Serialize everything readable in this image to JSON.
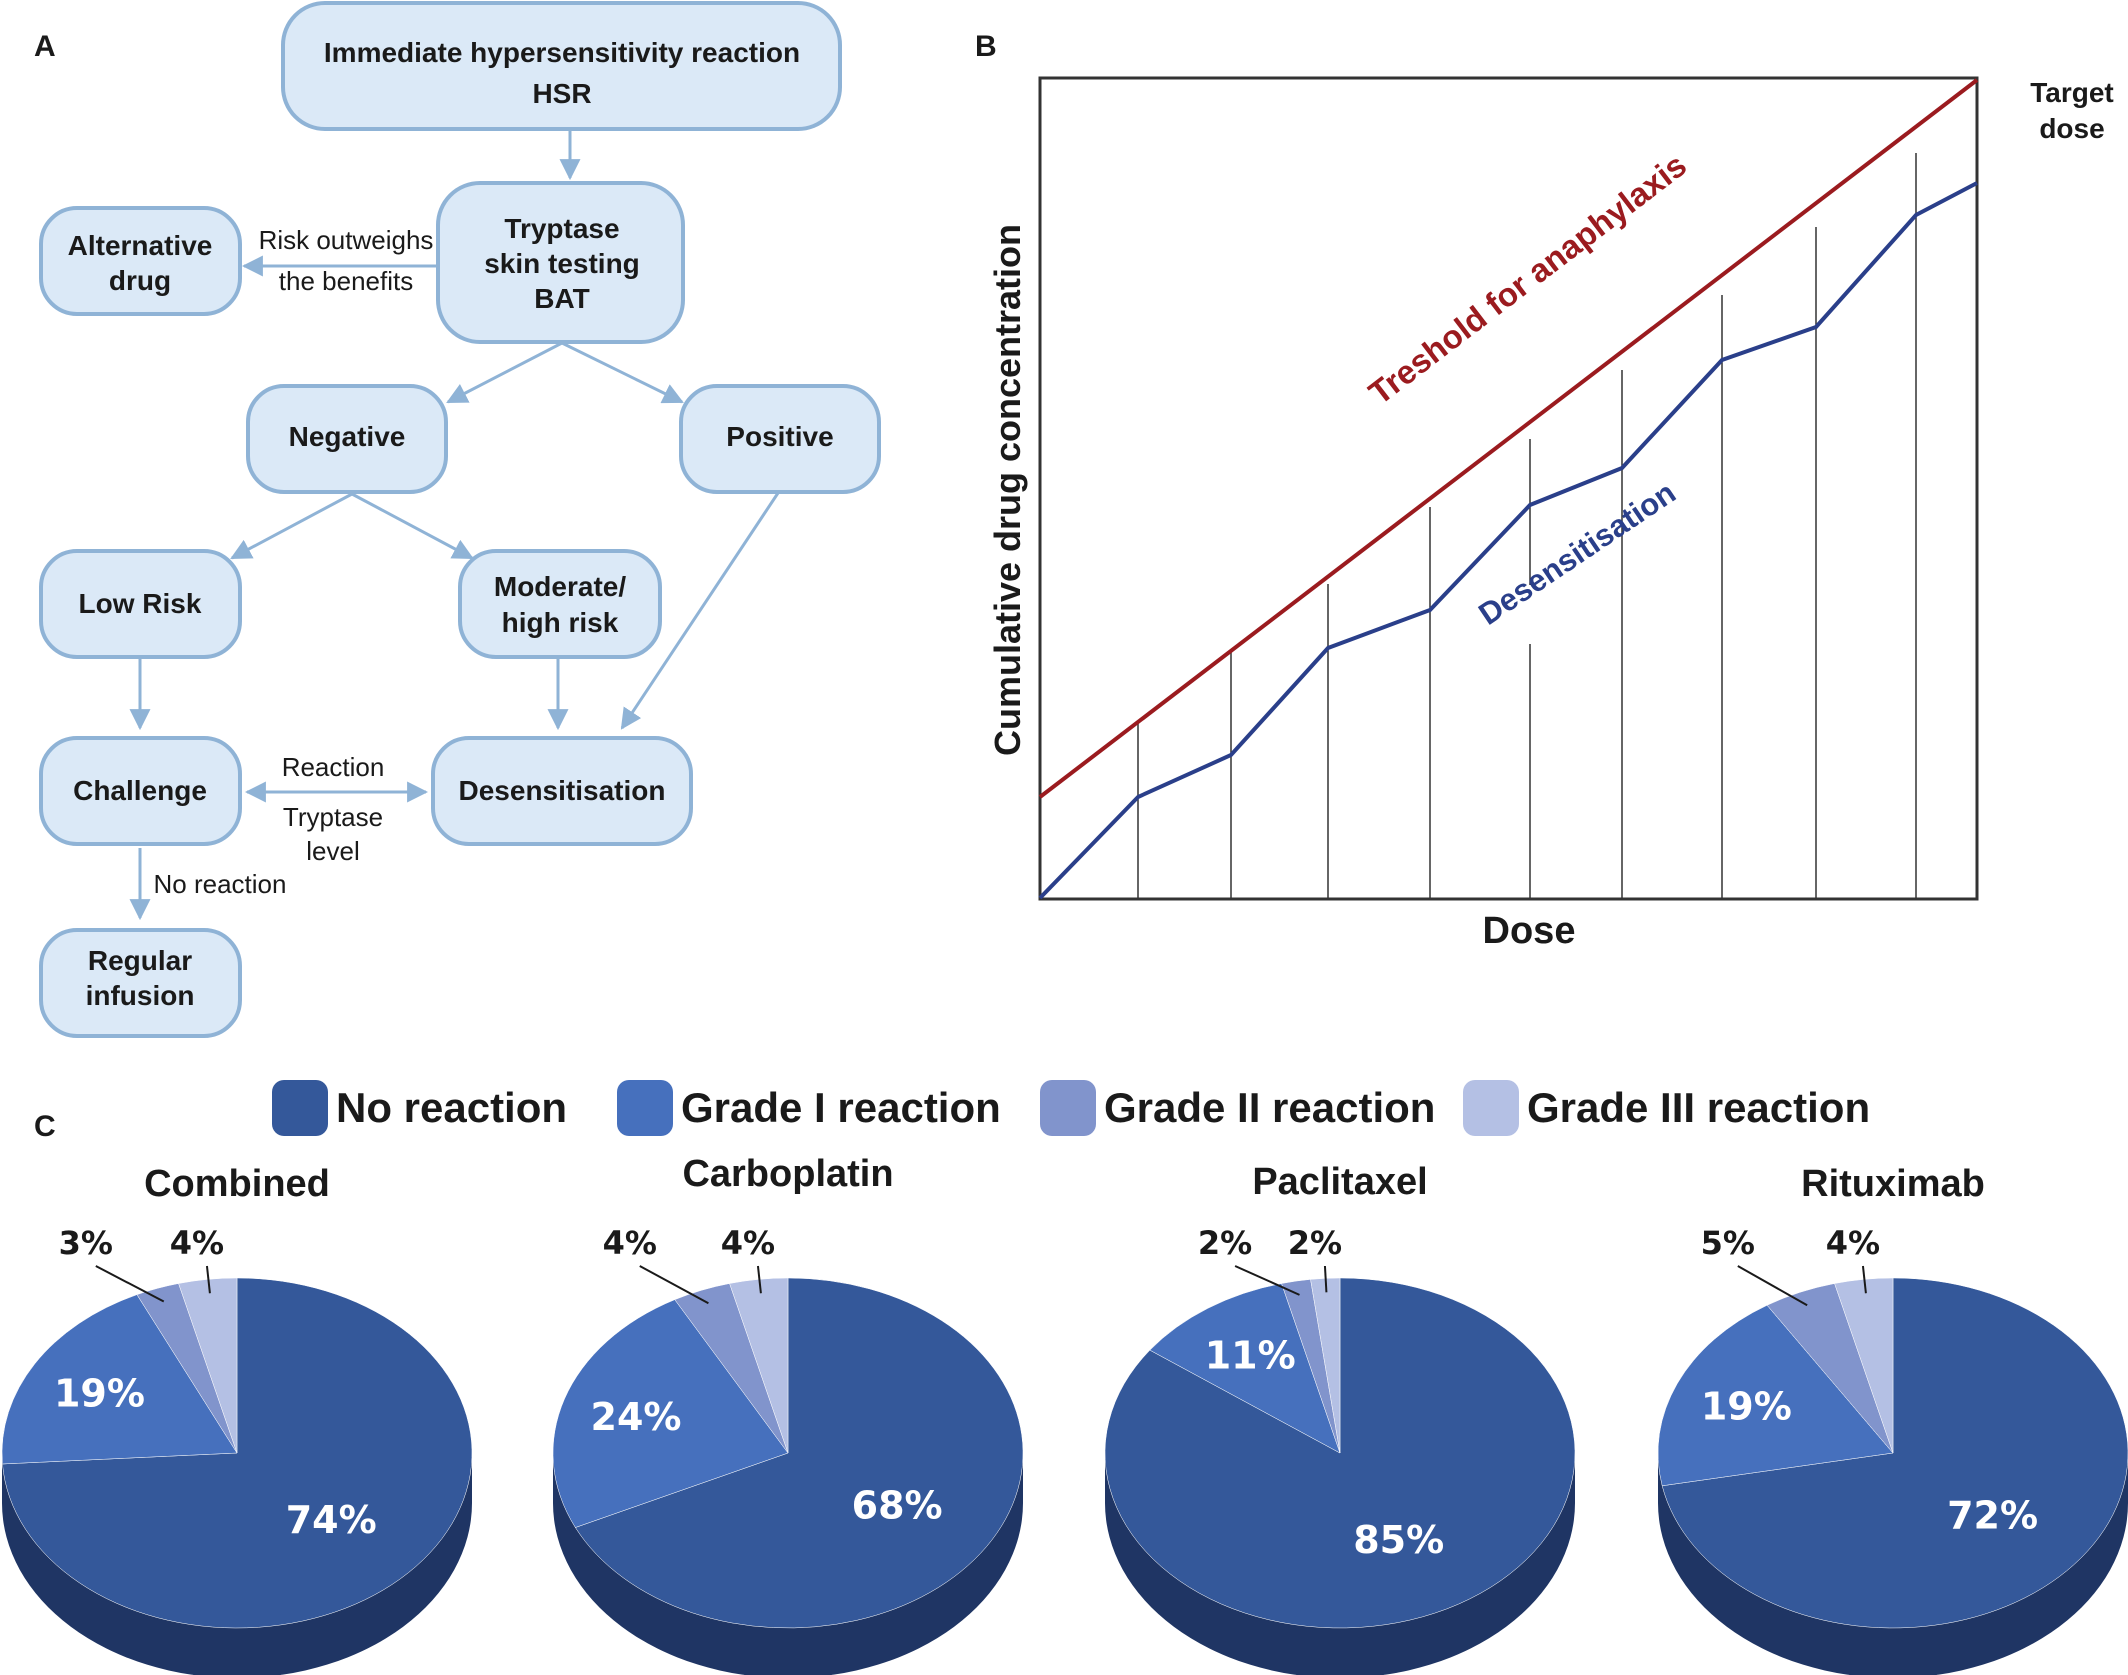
{
  "panel_a": {
    "letter": "A",
    "nodes": {
      "hsr": [
        "Immediate hypersensitivity reaction",
        "HSR"
      ],
      "testing": [
        "Tryptase",
        "skin testing",
        "BAT"
      ],
      "alternative": [
        "Alternative",
        "drug"
      ],
      "negative": [
        "Negative"
      ],
      "positive": [
        "Positive"
      ],
      "low_risk": [
        "Low Risk"
      ],
      "moderate": [
        "Moderate/",
        "high risk"
      ],
      "challenge": [
        "Challenge"
      ],
      "desensitisation": [
        "Desensitisation"
      ],
      "regular": [
        "Regular",
        "infusion"
      ]
    },
    "edge_labels": {
      "risk": [
        "Risk outweighs",
        "the benefits"
      ],
      "reaction": "Reaction",
      "tryptase_level": [
        "Tryptase",
        "level"
      ],
      "no_reaction": "No reaction"
    }
  },
  "panel_b": {
    "letter": "B",
    "ylabel": "Cumulative drug concentration",
    "xlabel": "Dose",
    "threshold_label": "Treshold for anaphylaxis",
    "desensitisation_label": "Desensitisation",
    "target_label": [
      "Target",
      "dose"
    ],
    "colors": {
      "threshold": "#9b1b1f",
      "desensitisation": "#2a3f8a"
    }
  },
  "panel_c": {
    "letter": "C",
    "legend": [
      {
        "label": "No reaction",
        "color": "#34589a"
      },
      {
        "label": "Grade I reaction",
        "color": "#4670bd"
      },
      {
        "label": "Grade II reaction",
        "color": "#8194cc"
      },
      {
        "label": "Grade III reaction",
        "color": "#b4c0e4"
      }
    ]
  },
  "chart_data": [
    {
      "type": "pie",
      "title": "Combined",
      "categories": [
        "No reaction",
        "Grade I reaction",
        "Grade II reaction",
        "Grade III reaction"
      ],
      "values": [
        74,
        19,
        3,
        4
      ],
      "labels": [
        "74%",
        "19%",
        "3%",
        "4%"
      ]
    },
    {
      "type": "pie",
      "title": "Carboplatin",
      "categories": [
        "No reaction",
        "Grade I reaction",
        "Grade II reaction",
        "Grade III reaction"
      ],
      "values": [
        68,
        24,
        4,
        4
      ],
      "labels": [
        "68%",
        "24%",
        "4%",
        "4%"
      ]
    },
    {
      "type": "pie",
      "title": "Paclitaxel",
      "categories": [
        "No reaction",
        "Grade I reaction",
        "Grade II reaction",
        "Grade III reaction"
      ],
      "values": [
        85,
        11,
        2,
        2
      ],
      "labels": [
        "85%",
        "11%",
        "2%",
        "2%"
      ]
    },
    {
      "type": "pie",
      "title": "Rituximab",
      "categories": [
        "No reaction",
        "Grade I reaction",
        "Grade II reaction",
        "Grade III reaction"
      ],
      "values": [
        72,
        19,
        5,
        4
      ],
      "labels": [
        "72%",
        "19%",
        "5%",
        "4%"
      ]
    }
  ]
}
